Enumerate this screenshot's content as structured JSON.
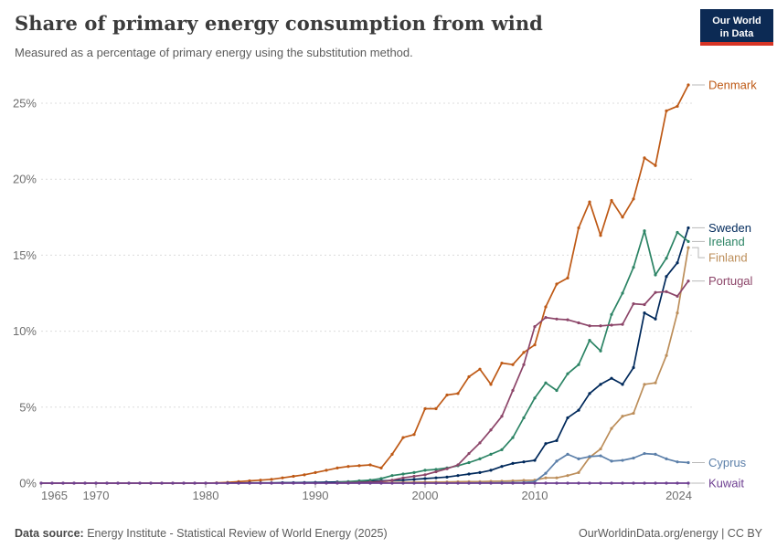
{
  "header": {
    "title": "Share of primary energy consumption from wind",
    "subtitle": "Measured as a percentage of primary energy using the substitution method."
  },
  "logo": {
    "line1": "Our World",
    "line2": "in Data",
    "bg_color": "#0c2a54",
    "bar_color": "#d63425"
  },
  "footer": {
    "source_label": "Data source:",
    "source_text": "Energy Institute - Statistical Review of World Energy (2025)",
    "credit": "OurWorldinData.org/energy | CC BY"
  },
  "chart_data": {
    "type": "line",
    "title": "Share of primary energy consumption from wind",
    "xlabel": "",
    "ylabel": "",
    "x_range": [
      1965,
      2024
    ],
    "ylim": [
      0,
      26.5
    ],
    "grid": true,
    "legend_position": "right-edge-labels",
    "x_ticks": [
      {
        "year": 1965,
        "label": "1965",
        "anchor": "start"
      },
      {
        "year": 1970,
        "label": "1970",
        "anchor": "middle"
      },
      {
        "year": 1980,
        "label": "1980",
        "anchor": "middle"
      },
      {
        "year": 1990,
        "label": "1990",
        "anchor": "middle"
      },
      {
        "year": 2000,
        "label": "2000",
        "anchor": "middle"
      },
      {
        "year": 2010,
        "label": "2010",
        "anchor": "middle"
      },
      {
        "year": 2024,
        "label": "2024",
        "anchor": "end"
      }
    ],
    "y_ticks": [
      {
        "v": 0,
        "label": "0%"
      },
      {
        "v": 5,
        "label": "5%"
      },
      {
        "v": 10,
        "label": "10%"
      },
      {
        "v": 15,
        "label": "15%"
      },
      {
        "v": 20,
        "label": "20%"
      },
      {
        "v": 25,
        "label": "25%"
      }
    ],
    "series": [
      {
        "name": "Denmark",
        "color": "#BE5915",
        "label_dy": 0,
        "values": [
          0,
          0,
          0,
          0,
          0,
          0,
          0,
          0,
          0,
          0,
          0,
          0,
          0,
          0,
          0,
          0,
          0.02,
          0.05,
          0.1,
          0.15,
          0.2,
          0.25,
          0.35,
          0.45,
          0.55,
          0.7,
          0.85,
          1.0,
          1.1,
          1.15,
          1.2,
          1.0,
          1.9,
          3.0,
          3.2,
          4.9,
          4.9,
          5.8,
          5.9,
          7.0,
          7.5,
          6.5,
          7.9,
          7.8,
          8.6,
          9.1,
          11.6,
          13.1,
          13.5,
          16.8,
          18.5,
          16.3,
          18.6,
          17.5,
          18.7,
          21.4,
          20.9,
          24.5,
          24.8,
          26.2
        ]
      },
      {
        "name": "Sweden",
        "color": "#00295B",
        "label_dy": 0,
        "values": [
          null,
          null,
          null,
          null,
          null,
          null,
          null,
          null,
          null,
          null,
          null,
          null,
          null,
          null,
          null,
          null,
          null,
          0.01,
          0.01,
          0.02,
          0.02,
          0.02,
          0.03,
          0.03,
          0.04,
          0.05,
          0.06,
          0.08,
          0.09,
          0.1,
          0.12,
          0.15,
          0.18,
          0.2,
          0.25,
          0.3,
          0.35,
          0.4,
          0.5,
          0.6,
          0.7,
          0.85,
          1.1,
          1.3,
          1.4,
          1.5,
          2.6,
          2.8,
          4.3,
          4.8,
          5.9,
          6.5,
          6.9,
          6.5,
          7.6,
          11.2,
          10.8,
          13.6,
          14.5,
          16.8
        ]
      },
      {
        "name": "Ireland",
        "color": "#2C8465",
        "label_dy": 0,
        "values": [
          null,
          null,
          null,
          null,
          null,
          null,
          null,
          null,
          null,
          null,
          null,
          null,
          null,
          null,
          null,
          null,
          null,
          null,
          null,
          null,
          null,
          null,
          null,
          null,
          null,
          null,
          null,
          0.05,
          0.1,
          0.15,
          0.2,
          0.3,
          0.5,
          0.6,
          0.7,
          0.85,
          0.9,
          1.0,
          1.15,
          1.35,
          1.6,
          1.9,
          2.2,
          3.0,
          4.3,
          5.6,
          6.6,
          6.1,
          7.2,
          7.8,
          9.4,
          8.7,
          11.1,
          12.5,
          14.2,
          16.6,
          13.7,
          14.8,
          16.5,
          15.9
        ]
      },
      {
        "name": "Finland",
        "color": "#BC8E5A",
        "label_dy": 11,
        "values": [
          null,
          null,
          null,
          null,
          null,
          null,
          null,
          null,
          null,
          null,
          null,
          null,
          null,
          null,
          null,
          null,
          null,
          null,
          null,
          null,
          null,
          null,
          null,
          null,
          null,
          null,
          null,
          0.01,
          0.01,
          0.02,
          0.02,
          0.03,
          0.04,
          0.05,
          0.06,
          0.07,
          0.07,
          0.08,
          0.09,
          0.1,
          0.1,
          0.12,
          0.13,
          0.15,
          0.18,
          0.2,
          0.35,
          0.35,
          0.5,
          0.7,
          1.7,
          2.25,
          3.6,
          4.4,
          4.6,
          6.5,
          6.6,
          8.4,
          11.2,
          15.5
        ]
      },
      {
        "name": "Portugal",
        "color": "#8C4569",
        "label_dy": 0,
        "values": [
          null,
          null,
          null,
          null,
          null,
          null,
          null,
          null,
          null,
          null,
          null,
          null,
          null,
          null,
          null,
          null,
          null,
          null,
          null,
          null,
          null,
          null,
          null,
          null,
          null,
          null,
          null,
          0.02,
          0.03,
          0.05,
          0.07,
          0.1,
          0.2,
          0.35,
          0.45,
          0.55,
          0.75,
          0.95,
          1.2,
          1.95,
          2.65,
          3.5,
          4.4,
          6.1,
          7.8,
          10.3,
          10.9,
          10.8,
          10.75,
          10.55,
          10.35,
          10.35,
          10.4,
          10.45,
          11.8,
          11.75,
          12.55,
          12.6,
          12.3,
          13.3
        ]
      },
      {
        "name": "Cyprus",
        "color": "#5B7FA9",
        "label_dy": 0,
        "values": [
          null,
          null,
          null,
          null,
          null,
          null,
          null,
          null,
          null,
          null,
          null,
          null,
          null,
          null,
          null,
          null,
          null,
          null,
          null,
          null,
          null,
          null,
          null,
          null,
          null,
          null,
          null,
          null,
          null,
          null,
          null,
          null,
          null,
          null,
          null,
          null,
          null,
          null,
          null,
          0.01,
          0.02,
          0.02,
          0.03,
          0.03,
          0.05,
          0.1,
          0.65,
          1.45,
          1.9,
          1.6,
          1.75,
          1.8,
          1.45,
          1.5,
          1.65,
          1.95,
          1.9,
          1.6,
          1.4,
          1.35
        ]
      },
      {
        "name": "Kuwait",
        "color": "#6D3E91",
        "label_dy": 0,
        "values": [
          0,
          0,
          0,
          0,
          0,
          0,
          0,
          0,
          0,
          0,
          0,
          0,
          0,
          0,
          0,
          0,
          0,
          0,
          0,
          0,
          0,
          0,
          0,
          0,
          0,
          0,
          0,
          0,
          0,
          0,
          0,
          0,
          0,
          0,
          0,
          0,
          0,
          0,
          0,
          0,
          0,
          0,
          0,
          0,
          0,
          0,
          0,
          0,
          0,
          0,
          0,
          0,
          0,
          0,
          0,
          0,
          0,
          0,
          0,
          0
        ]
      }
    ]
  }
}
